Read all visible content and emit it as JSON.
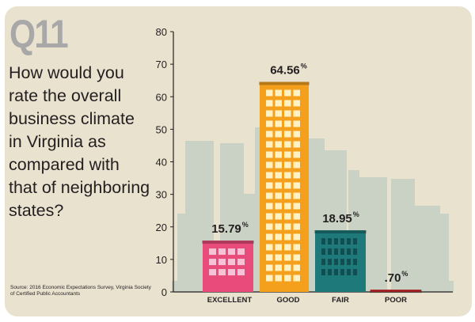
{
  "question": {
    "number": "Q11",
    "text": "How would you rate the overall business climate in Virginia as compared with that of neighboring states?"
  },
  "source": "Source: 2016 Economic Expectations Survey, Virginia Society of Certified Public Accountants",
  "chart_data": {
    "type": "bar",
    "categories": [
      "EXCELLENT",
      "GOOD",
      "FAIR",
      "POOR"
    ],
    "values": [
      15.79,
      64.56,
      18.95,
      0.7
    ],
    "value_labels": [
      "15.79",
      "64.56",
      "18.95",
      ".70"
    ],
    "unit_symbol": "%",
    "ylim": [
      0,
      80
    ],
    "yticks": [
      0,
      10,
      20,
      30,
      40,
      50,
      60,
      70,
      80
    ],
    "grid": false,
    "colors": [
      "#e94b7a",
      "#f5a01d",
      "#1e7a7a",
      "#d7282f"
    ]
  }
}
